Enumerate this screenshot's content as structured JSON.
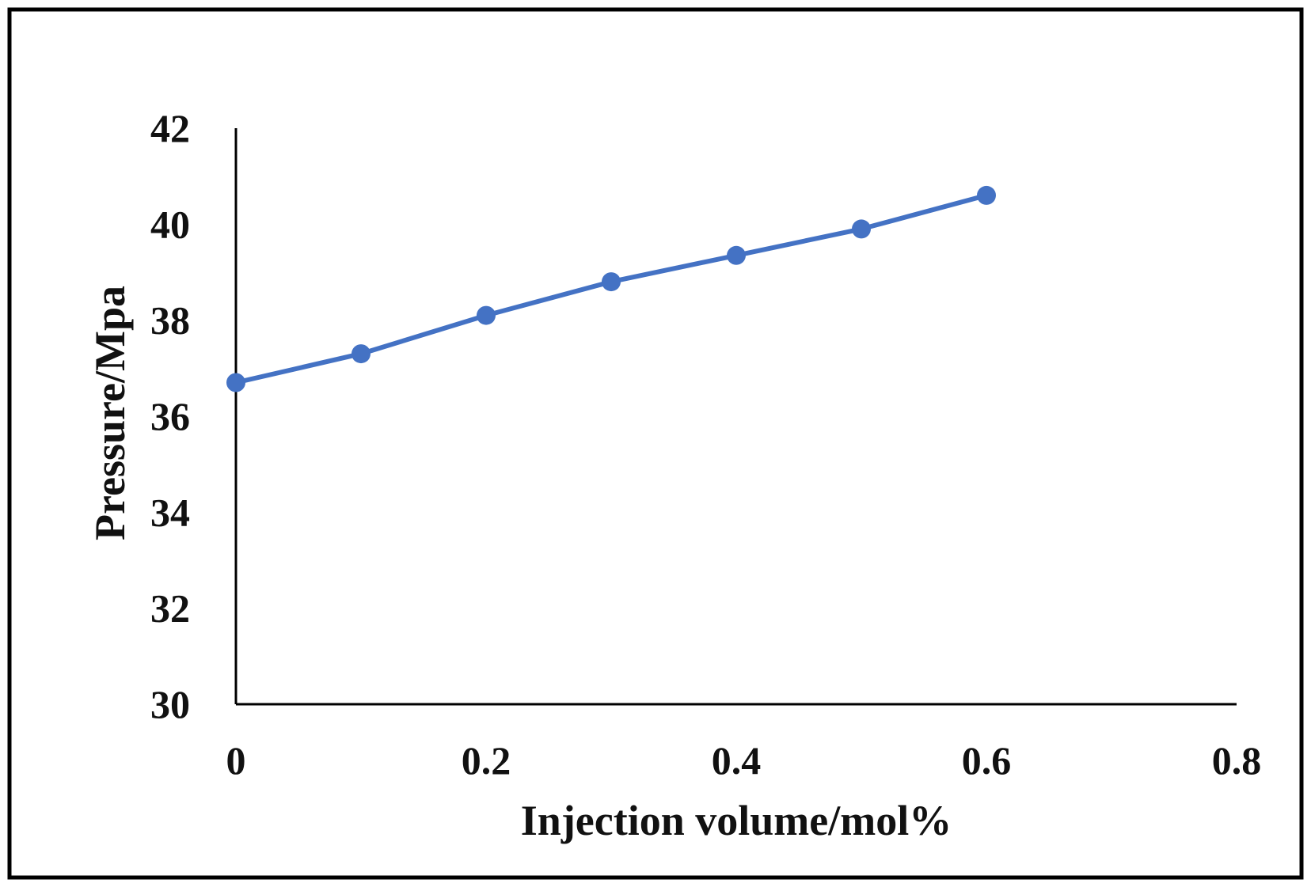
{
  "chart_data": {
    "type": "line",
    "title": "",
    "xlabel": "Injection volume/mol%",
    "ylabel": "Pressure/Mpa",
    "xlim": [
      0,
      0.8
    ],
    "ylim": [
      30,
      42
    ],
    "x_ticks": [
      0,
      0.2,
      0.4,
      0.6,
      0.8
    ],
    "x_tick_labels": [
      "0",
      "0.2",
      "0.4",
      "0.6",
      "0.8"
    ],
    "y_ticks": [
      30,
      32,
      34,
      36,
      38,
      40,
      42
    ],
    "y_tick_labels": [
      "30",
      "32",
      "34",
      "36",
      "38",
      "40",
      "42"
    ],
    "grid": false,
    "legend": "none",
    "series": [
      {
        "name": "Pressure",
        "color": "#4472c4",
        "x": [
          0,
          0.1,
          0.2,
          0.3,
          0.4,
          0.5,
          0.6
        ],
        "values": [
          36.7,
          37.3,
          38.1,
          38.8,
          39.35,
          39.9,
          40.6
        ]
      }
    ]
  }
}
